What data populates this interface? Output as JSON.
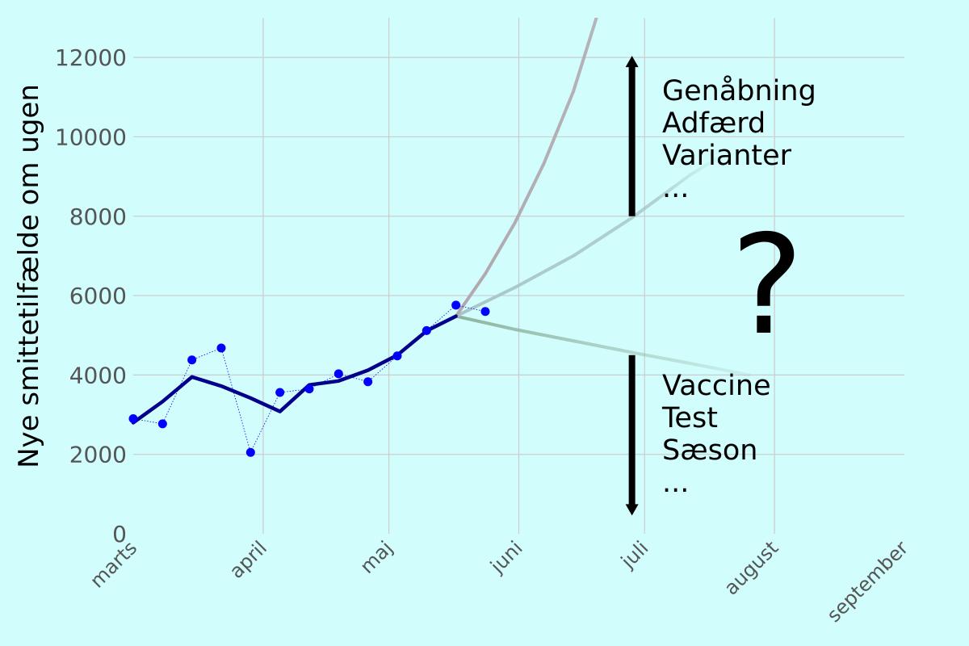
{
  "chart_data": {
    "type": "line",
    "title": "",
    "xlabel": "",
    "ylabel": "Nye smittetilfælde om ugen",
    "ylim": [
      0,
      13000
    ],
    "yticks": [
      0,
      2000,
      4000,
      6000,
      8000,
      10000,
      12000
    ],
    "x_range": [
      "2021-03-01",
      "2021-09-01"
    ],
    "x_tick_dates": [
      "2021-03-01",
      "2021-04-01",
      "2021-05-01",
      "2021-06-01",
      "2021-07-01",
      "2021-08-01",
      "2021-09-01"
    ],
    "x_tick_labels": [
      "marts",
      "april",
      "maj",
      "juni",
      "juli",
      "august",
      "september"
    ],
    "grid": true,
    "series": [
      {
        "role": "observed",
        "color": "#0000ff",
        "points": [
          [
            "2021-03-01",
            2900
          ],
          [
            "2021-03-08",
            2770
          ],
          [
            "2021-03-15",
            4380
          ],
          [
            "2021-03-22",
            4680
          ],
          [
            "2021-03-29",
            2050
          ],
          [
            "2021-04-05",
            3560
          ],
          [
            "2021-04-12",
            3650
          ],
          [
            "2021-04-19",
            4030
          ],
          [
            "2021-04-26",
            3830
          ],
          [
            "2021-05-03",
            4480
          ],
          [
            "2021-05-10",
            5120
          ],
          [
            "2021-05-17",
            5760
          ],
          [
            "2021-05-24",
            5600
          ]
        ]
      },
      {
        "role": "smoothed",
        "color": "#00008b",
        "points": [
          [
            "2021-03-01",
            2800
          ],
          [
            "2021-03-08",
            3330
          ],
          [
            "2021-03-15",
            3950
          ],
          [
            "2021-03-22",
            3720
          ],
          [
            "2021-03-29",
            3420
          ],
          [
            "2021-04-05",
            3080
          ],
          [
            "2021-04-12",
            3750
          ],
          [
            "2021-04-19",
            3850
          ],
          [
            "2021-04-26",
            4120
          ],
          [
            "2021-05-03",
            4500
          ],
          [
            "2021-05-10",
            5110
          ],
          [
            "2021-05-17",
            5480
          ]
        ]
      },
      {
        "role": "scenario-high",
        "color": "#b0a8ae",
        "points": [
          [
            "2021-05-17",
            5480
          ],
          [
            "2021-05-24",
            6550
          ],
          [
            "2021-05-31",
            7820
          ],
          [
            "2021-06-07",
            9330
          ],
          [
            "2021-06-14",
            11140
          ],
          [
            "2021-06-21",
            13500
          ]
        ]
      },
      {
        "role": "scenario-mid",
        "color": "#a8c6c7",
        "points": [
          [
            "2021-05-17",
            5480
          ],
          [
            "2021-05-31",
            6200
          ],
          [
            "2021-06-14",
            7000
          ],
          [
            "2021-06-28",
            7960
          ],
          [
            "2021-07-12",
            9050
          ],
          [
            "2021-07-19",
            9500
          ]
        ]
      },
      {
        "role": "scenario-low",
        "color": "#8fb3a1",
        "points": [
          [
            "2021-05-17",
            5480
          ],
          [
            "2021-05-31",
            5150
          ],
          [
            "2021-06-14",
            4860
          ],
          [
            "2021-06-28",
            4570
          ],
          [
            "2021-07-12",
            4290
          ],
          [
            "2021-07-26",
            4000
          ]
        ]
      }
    ],
    "annotations": {
      "up_arrow": {
        "date": "2021-06-28",
        "from": 8000,
        "to": 12000
      },
      "down_arrow": {
        "date": "2021-06-28",
        "from": 4500,
        "to": 500
      },
      "upper_list": [
        "Genåbning",
        "Adfærd",
        "Varianter",
        "..."
      ],
      "lower_list": [
        "Vaccine",
        "Test",
        "Sæson",
        "..."
      ],
      "question_mark": "?"
    }
  }
}
